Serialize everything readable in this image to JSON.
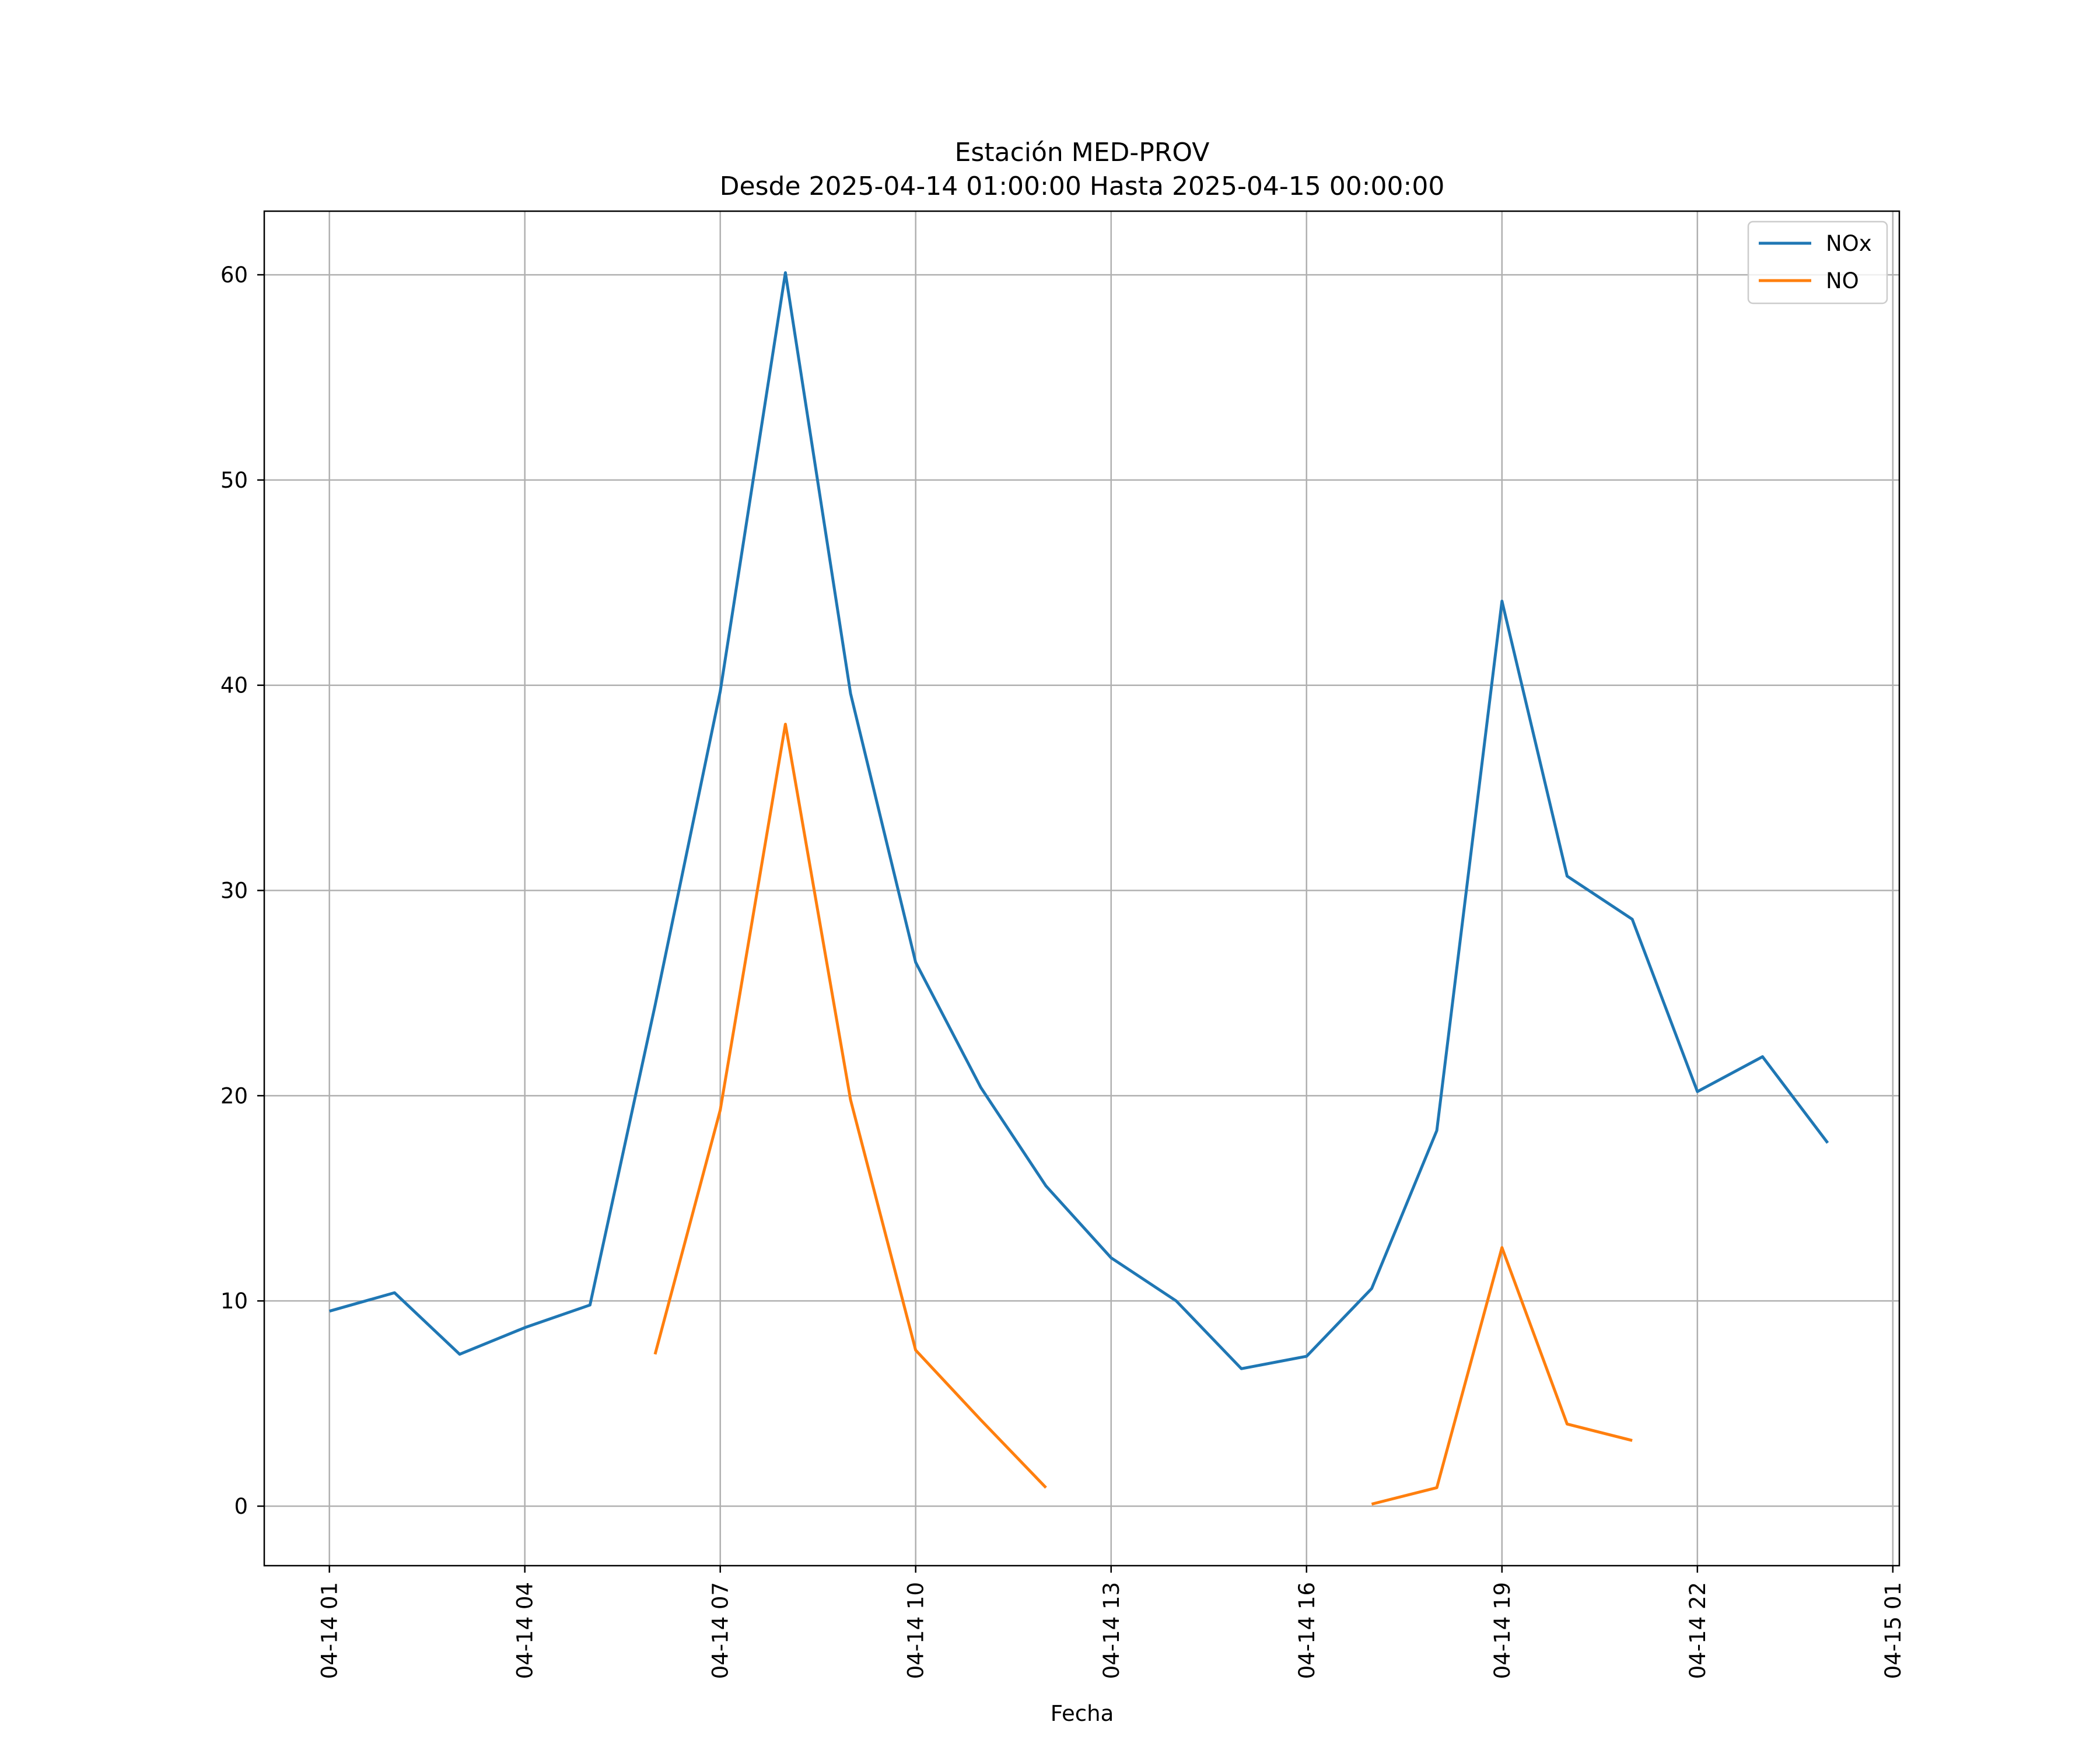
{
  "chart_data": {
    "type": "line",
    "title": "Estación MED-PROV",
    "subtitle": "Desde 2025-04-14 01:00:00 Hasta 2025-04-15 00:00:00",
    "xlabel": "Fecha",
    "ylabel": "",
    "x_tick_labels": [
      "04-14 01",
      "04-14 04",
      "04-14 07",
      "04-14 10",
      "04-14 13",
      "04-14 16",
      "04-14 19",
      "04-14 22",
      "04-15 01"
    ],
    "y_ticks": [
      0,
      10,
      20,
      30,
      40,
      50,
      60
    ],
    "xlim": [
      "2025-04-14 00:00",
      "2025-04-15 01:06"
    ],
    "ylim": [
      -2.9,
      63.1
    ],
    "grid": true,
    "legend_position": "top-right",
    "x": [
      "2025-04-14 01:00",
      "2025-04-14 02:00",
      "2025-04-14 03:00",
      "2025-04-14 04:00",
      "2025-04-14 05:00",
      "2025-04-14 06:00",
      "2025-04-14 07:00",
      "2025-04-14 08:00",
      "2025-04-14 09:00",
      "2025-04-14 10:00",
      "2025-04-14 11:00",
      "2025-04-14 12:00",
      "2025-04-14 13:00",
      "2025-04-14 14:00",
      "2025-04-14 15:00",
      "2025-04-14 16:00",
      "2025-04-14 17:00",
      "2025-04-14 18:00",
      "2025-04-14 19:00",
      "2025-04-14 20:00",
      "2025-04-14 21:00",
      "2025-04-14 22:00",
      "2025-04-14 23:00",
      "2025-04-15 00:00"
    ],
    "series": [
      {
        "name": "NOx",
        "color": "#1f77b4",
        "values": [
          9.5,
          10.4,
          7.4,
          8.7,
          9.8,
          24.4,
          39.7,
          60.1,
          39.6,
          26.5,
          20.4,
          15.6,
          12.1,
          10.0,
          6.7,
          7.3,
          10.6,
          18.3,
          44.1,
          30.7,
          28.6,
          20.2,
          21.9,
          17.7
        ]
      },
      {
        "name": "NO",
        "color": "#ff7f0e",
        "values": [
          null,
          null,
          null,
          null,
          null,
          7.4,
          19.3,
          38.1,
          19.8,
          7.6,
          4.2,
          0.9,
          null,
          null,
          null,
          null,
          0.1,
          0.9,
          12.6,
          4.0,
          3.2,
          null,
          null,
          null
        ]
      }
    ]
  }
}
